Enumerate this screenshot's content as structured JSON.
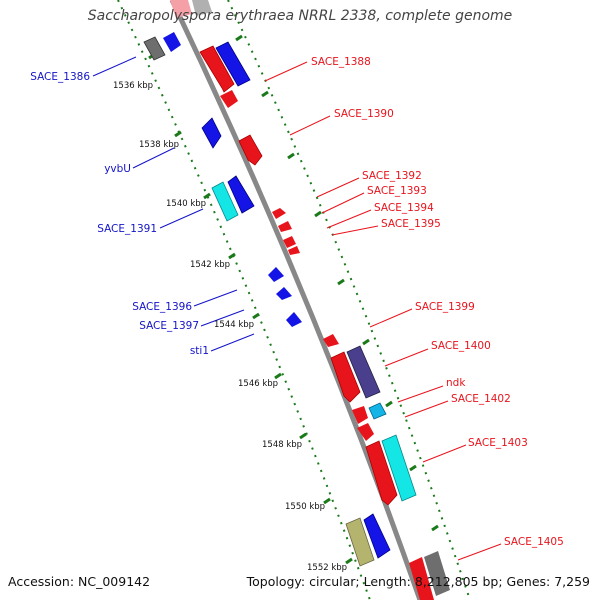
{
  "title": "Saccharopolyspora erythraea NRRL 2338, complete genome",
  "footer": {
    "accession": "Accession: NC_009142",
    "topology": "Topology: circular; Length: 8,212,805 bp; Genes: 7,259"
  },
  "colors": {
    "forward_cds": "#e8141c",
    "reverse_cds": "#1414e6",
    "navy": "#4a3f8c",
    "gray": "#6e6e6e",
    "cyan": "#14e6e6",
    "lightblue": "#14b4e6",
    "khaki": "#b4b46e",
    "backbone": "#888888",
    "ticks": "#1a7a1a",
    "label_red": "#e8141c",
    "label_blue": "#1414c8"
  },
  "ticks": [
    "1536 kbp",
    "1538 kbp",
    "1540 kbp",
    "1542 kbp",
    "1544 kbp",
    "1546 kbp",
    "1548 kbp",
    "1550 kbp",
    "1552 kbp"
  ],
  "labels_right": [
    "SACE_1388",
    "SACE_1390",
    "SACE_1392",
    "SACE_1393",
    "SACE_1394",
    "SACE_1395",
    "SACE_1399",
    "SACE_1400",
    "ndk",
    "SACE_1402",
    "SACE_1403",
    "SACE_1405"
  ],
  "labels_left": [
    "SACE_1386",
    "yvbU",
    "SACE_1391",
    "SACE_1396",
    "SACE_1397",
    "sti1"
  ]
}
